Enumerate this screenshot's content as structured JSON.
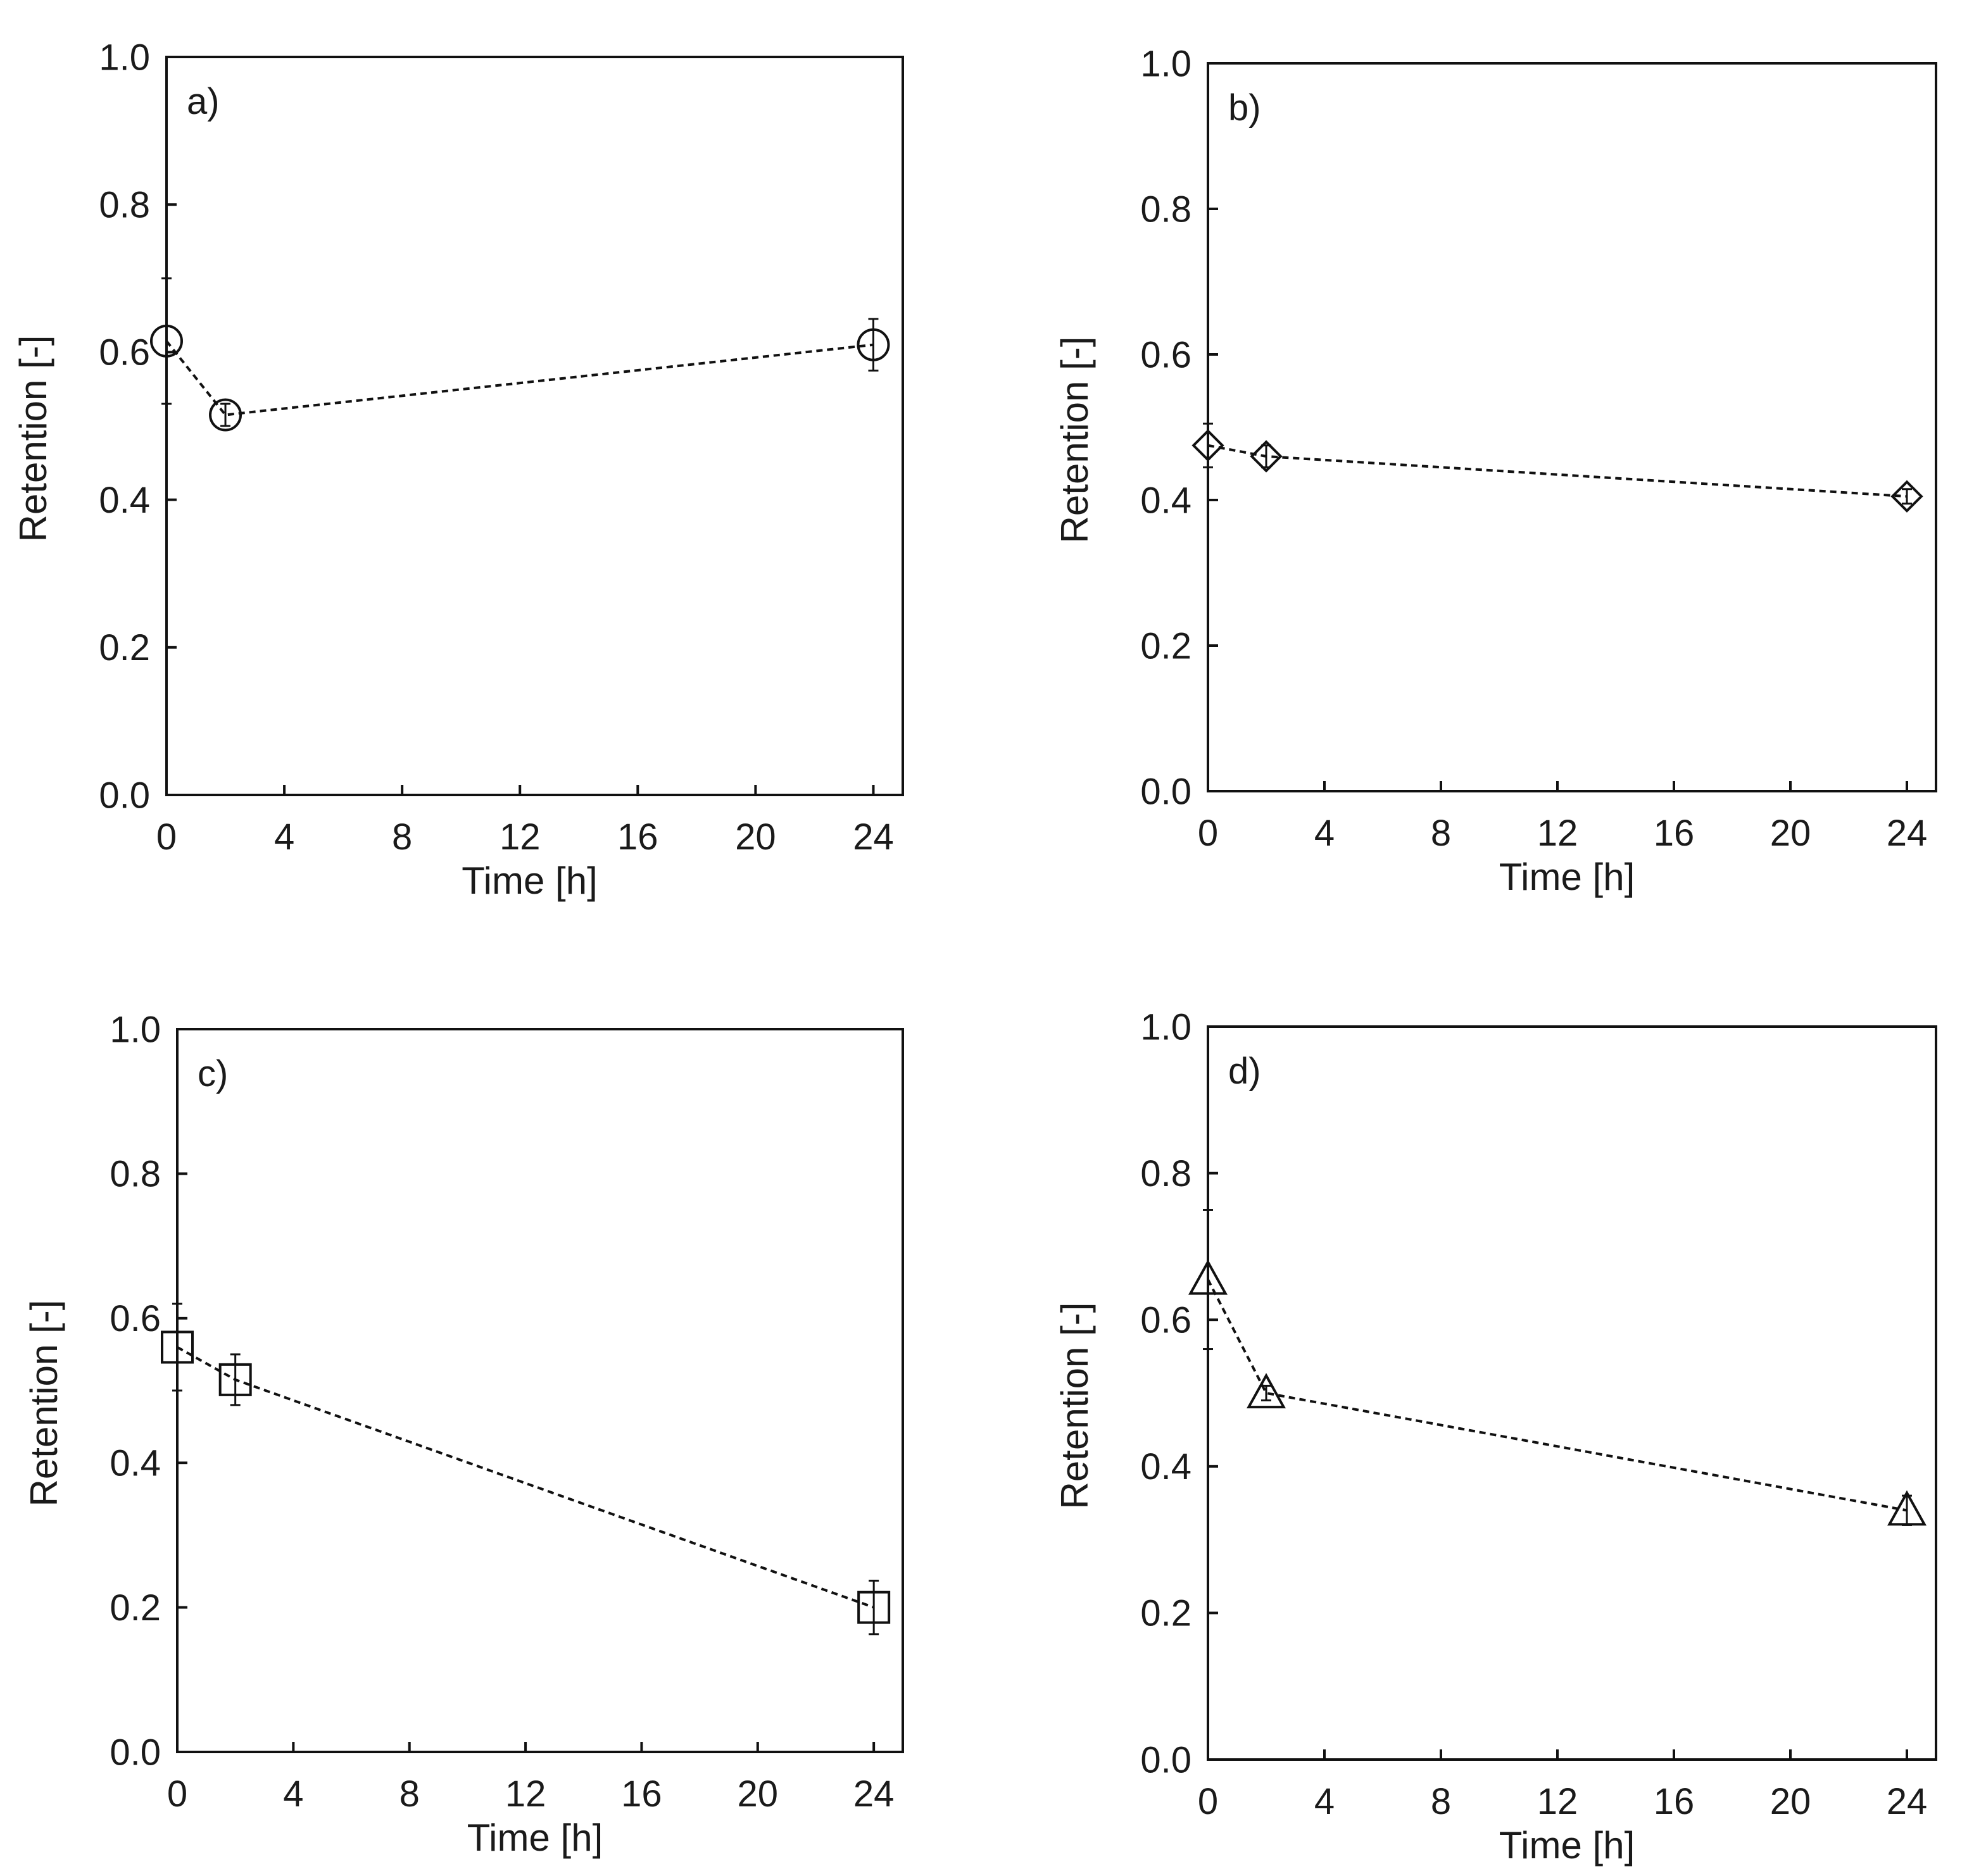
{
  "chart_data": [
    {
      "panel": "a)",
      "type": "line",
      "title": "",
      "xlabel": "Time [h]",
      "ylabel": "Retention [-]",
      "xlim": [
        0,
        25
      ],
      "ylim": [
        0,
        1.0
      ],
      "xticks": [
        0,
        4,
        8,
        12,
        16,
        20,
        24
      ],
      "yticks": [
        0.0,
        0.2,
        0.4,
        0.6,
        0.8,
        1.0
      ],
      "marker": "circle",
      "series": [
        {
          "name": "a",
          "x": [
            0,
            2,
            24
          ],
          "y": [
            0.615,
            0.515,
            0.61
          ],
          "err": [
            0.085,
            0.015,
            0.035
          ]
        }
      ]
    },
    {
      "panel": "b)",
      "type": "line",
      "title": "",
      "xlabel": "Time [h]",
      "ylabel": "Retention [-]",
      "xlim": [
        0,
        25
      ],
      "ylim": [
        0,
        1.0
      ],
      "xticks": [
        0,
        4,
        8,
        12,
        16,
        20,
        24
      ],
      "yticks": [
        0.0,
        0.2,
        0.4,
        0.6,
        0.8,
        1.0
      ],
      "marker": "diamond",
      "series": [
        {
          "name": "b",
          "x": [
            0,
            2,
            24
          ],
          "y": [
            0.475,
            0.46,
            0.405
          ],
          "err": [
            0.03,
            0.015,
            0.01
          ]
        }
      ]
    },
    {
      "panel": "c)",
      "type": "line",
      "title": "",
      "xlabel": "Time [h]",
      "ylabel": "Retention [-]",
      "xlim": [
        0,
        25
      ],
      "ylim": [
        0,
        1.0
      ],
      "xticks": [
        0,
        4,
        8,
        12,
        16,
        20,
        24
      ],
      "yticks": [
        0.0,
        0.2,
        0.4,
        0.6,
        0.8,
        1.0
      ],
      "marker": "square",
      "series": [
        {
          "name": "c",
          "x": [
            0,
            2,
            24
          ],
          "y": [
            0.56,
            0.515,
            0.2
          ],
          "err": [
            0.06,
            0.035,
            0.037
          ]
        }
      ]
    },
    {
      "panel": "d)",
      "type": "line",
      "title": "",
      "xlabel": "Time [h]",
      "ylabel": "Retention [-]",
      "xlim": [
        0,
        25
      ],
      "ylim": [
        0,
        1.0
      ],
      "xticks": [
        0,
        4,
        8,
        12,
        16,
        20,
        24
      ],
      "yticks": [
        0.0,
        0.2,
        0.4,
        0.6,
        0.8,
        1.0
      ],
      "marker": "triangle",
      "series": [
        {
          "name": "d",
          "x": [
            0,
            2,
            24
          ],
          "y": [
            0.655,
            0.5,
            0.34
          ],
          "err": [
            0.095,
            0.01,
            0.02
          ]
        }
      ]
    }
  ]
}
